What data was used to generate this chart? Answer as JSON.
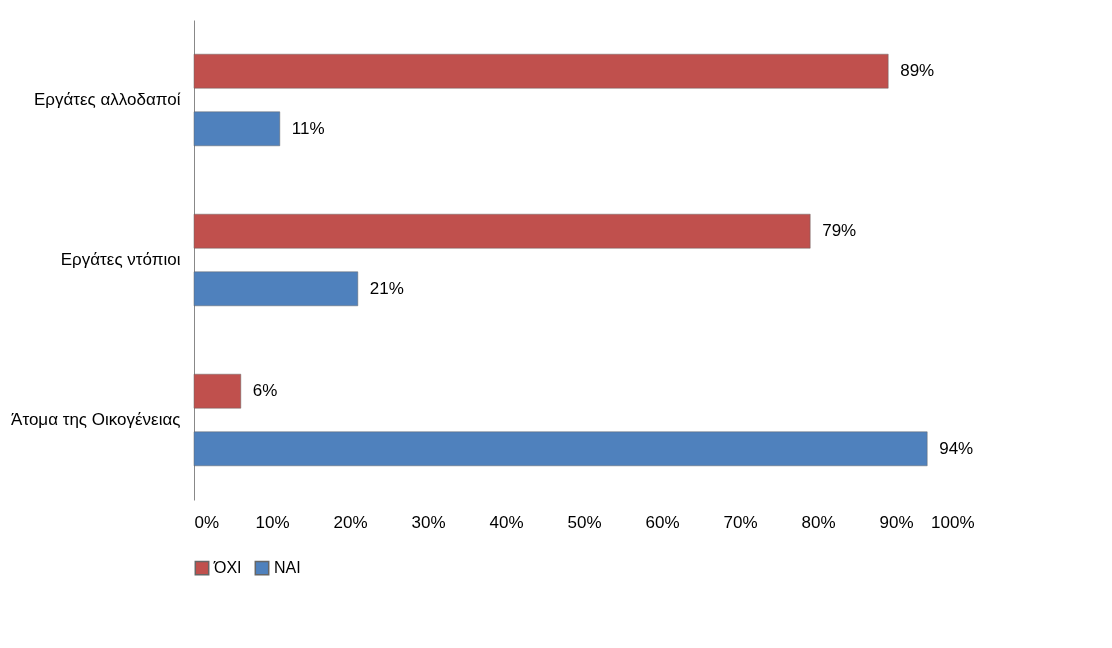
{
  "chart_data": {
    "type": "bar",
    "orientation": "horizontal",
    "categories": [
      "Εργάτες αλλοδαποί",
      "Εργάτες ντόπιοι",
      "Άτομα της Οικογένειας"
    ],
    "series": [
      {
        "name": "ΌΧΙ",
        "color": "#c0504d",
        "values": [
          89,
          79,
          6
        ],
        "value_labels": [
          "89%",
          "79%",
          "6%"
        ]
      },
      {
        "name": "ΝΑΙ",
        "color": "#4f81bd",
        "values": [
          11,
          21,
          94
        ],
        "value_labels": [
          "11%",
          "21%",
          "94%"
        ]
      }
    ],
    "xlim": [
      0,
      100
    ],
    "xticks": [
      {
        "value": 0,
        "label": "0%"
      },
      {
        "value": 10,
        "label": "10%"
      },
      {
        "value": 20,
        "label": "20%"
      },
      {
        "value": 30,
        "label": "30%"
      },
      {
        "value": 40,
        "label": "40%"
      },
      {
        "value": 50,
        "label": "50%"
      },
      {
        "value": 60,
        "label": "60%"
      },
      {
        "value": 70,
        "label": "70%"
      },
      {
        "value": 80,
        "label": "80%"
      },
      {
        "value": 90,
        "label": "90%"
      },
      {
        "value": 100,
        "label": "100%"
      }
    ],
    "grid": false,
    "legend": "bottom"
  }
}
